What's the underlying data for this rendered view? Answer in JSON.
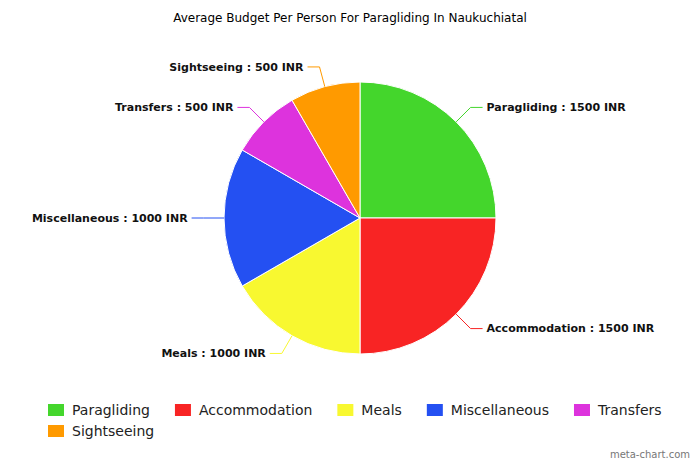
{
  "chart_data": {
    "type": "pie",
    "title": "Average Budget Per Person For Paragliding In Naukuchiatal",
    "categories": [
      "Paragliding",
      "Accommodation",
      "Meals",
      "Miscellaneous",
      "Transfers",
      "Sightseeing"
    ],
    "values": [
      1500,
      1500,
      1000,
      1000,
      500,
      500
    ],
    "value_labels": [
      "Paragliding : 1500 INR",
      "Accommodation : 1500 INR",
      "Meals : 1000 INR",
      "Miscellaneous : 1000 INR",
      "Transfers : 500 INR",
      "Sightseeing : 500 INR"
    ],
    "colors": [
      "#44d62c",
      "#f82424",
      "#f8f830",
      "#2450f2",
      "#dd33dd",
      "#ff9a00"
    ],
    "data_labels": true,
    "legend": "bottom",
    "annotations": [
      "meta-chart.com"
    ]
  }
}
